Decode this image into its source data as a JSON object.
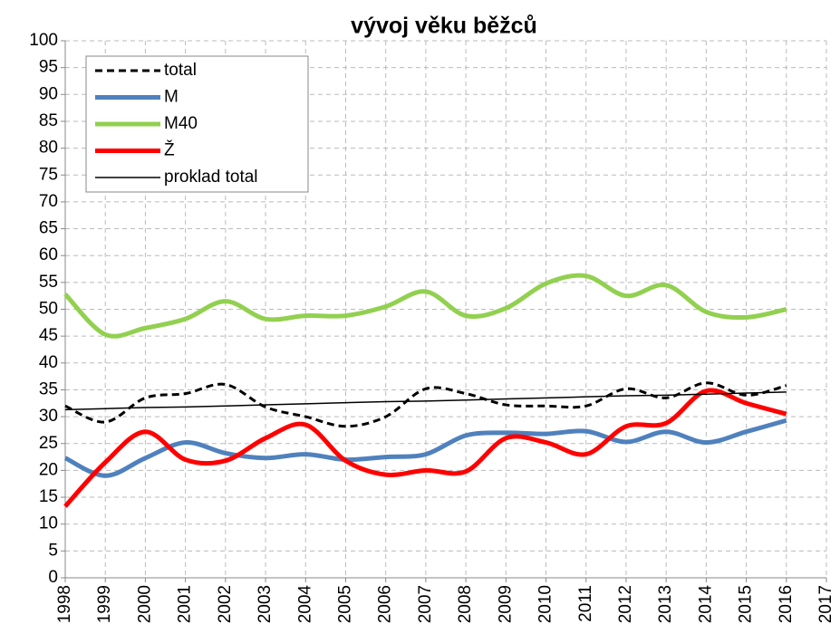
{
  "chart_data": {
    "type": "line",
    "title": "vývoj věku běžců",
    "x": [
      1998,
      1999,
      2000,
      2001,
      2002,
      2003,
      2004,
      2005,
      2006,
      2007,
      2008,
      2009,
      2010,
      2011,
      2012,
      2013,
      2014,
      2015,
      2016
    ],
    "series": [
      {
        "name": "total",
        "color": "#000000",
        "dash": true,
        "width": 3,
        "values": [
          32,
          29,
          33.5,
          34.3,
          36,
          31.8,
          30,
          28.2,
          30,
          35.2,
          34.3,
          32.2,
          32,
          32,
          35.2,
          33.5,
          36.3,
          34,
          35.8
        ]
      },
      {
        "name": "M",
        "color": "#4f81bd",
        "width": 5,
        "values": [
          22.3,
          19,
          22.3,
          25.2,
          23.2,
          22.3,
          23,
          22,
          22.5,
          23,
          26.5,
          27,
          26.8,
          27.3,
          25.3,
          27.2,
          25.2,
          27.2,
          29.3
        ]
      },
      {
        "name": "M40",
        "color": "#92d050",
        "width": 5,
        "values": [
          52.8,
          45.3,
          46.5,
          48.2,
          51.5,
          48.2,
          48.8,
          48.8,
          50.5,
          53.3,
          48.8,
          50.2,
          54.8,
          56.2,
          52.5,
          54.5,
          49.5,
          48.5,
          50
        ]
      },
      {
        "name": "Ž",
        "color": "#ff0000",
        "width": 5,
        "values": [
          13.3,
          21.5,
          27.2,
          22,
          21.8,
          26,
          28.5,
          21.8,
          19.2,
          20,
          19.8,
          26,
          25.2,
          23,
          28.2,
          28.8,
          34.8,
          32.5,
          30.5
        ]
      },
      {
        "name": "proklad total",
        "color": "#000000",
        "width": 1.5,
        "straight": true,
        "values": [
          31.3,
          31.5,
          31.7,
          31.8,
          32.0,
          32.2,
          32.4,
          32.6,
          32.8,
          32.9,
          33.1,
          33.3,
          33.5,
          33.7,
          33.9,
          34.0,
          34.2,
          34.4,
          34.6
        ]
      }
    ],
    "xlim": [
      1998,
      2017
    ],
    "xticks": [
      1998,
      1999,
      2000,
      2001,
      2002,
      2003,
      2004,
      2005,
      2006,
      2007,
      2008,
      2009,
      2010,
      2011,
      2012,
      2013,
      2014,
      2015,
      2016,
      2017
    ],
    "ylim": [
      0,
      100
    ],
    "yticks": [
      0,
      5,
      10,
      15,
      20,
      25,
      30,
      35,
      40,
      45,
      50,
      55,
      60,
      65,
      70,
      75,
      80,
      85,
      90,
      95,
      100
    ],
    "grid": true,
    "legend": "top-left"
  }
}
